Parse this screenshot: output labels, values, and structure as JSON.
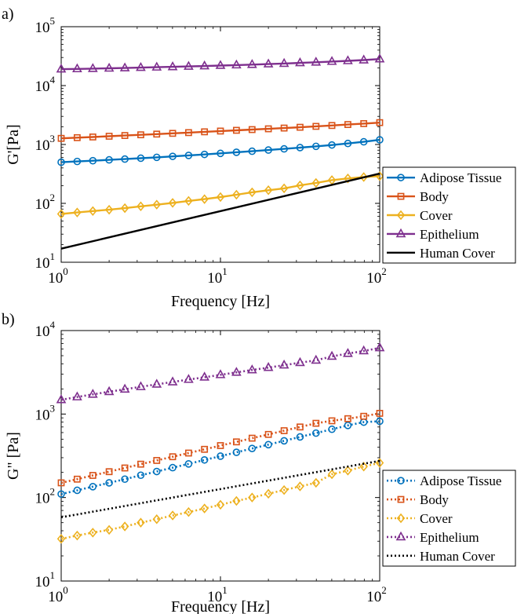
{
  "chart_data": [
    {
      "type": "line",
      "panel_label": "a)",
      "xlabel": "Frequency [Hz]",
      "ylabel": "G'[Pa]",
      "xscale": "log",
      "yscale": "log",
      "xlim": [
        1,
        100
      ],
      "ylim": [
        10,
        100000
      ],
      "x_ticks": [
        {
          "value": 1,
          "base": "10",
          "exp": "0"
        },
        {
          "value": 10,
          "base": "10",
          "exp": "1"
        },
        {
          "value": 100,
          "base": "10",
          "exp": "2"
        }
      ],
      "y_ticks": [
        {
          "value": 10,
          "base": "10",
          "exp": "1"
        },
        {
          "value": 100,
          "base": "10",
          "exp": "2"
        },
        {
          "value": 1000,
          "base": "10",
          "exp": "3"
        },
        {
          "value": 10000,
          "base": "10",
          "exp": "4"
        },
        {
          "value": 100000,
          "base": "10",
          "exp": "5"
        }
      ],
      "grid": false,
      "legend_position": "lower-right outside",
      "x": [
        1,
        1.26,
        1.58,
        2,
        2.51,
        3.16,
        3.98,
        5.01,
        6.31,
        7.94,
        10,
        12.6,
        15.8,
        20,
        25.1,
        31.6,
        39.8,
        50.1,
        63.1,
        79.4,
        100
      ],
      "series": [
        {
          "name": "Adipose Tissue",
          "color": "#0072BD",
          "marker": "circle",
          "line": "solid",
          "values": [
            500,
            515,
            530,
            548,
            565,
            585,
            605,
            628,
            652,
            678,
            706,
            737,
            768,
            804,
            842,
            885,
            930,
            980,
            1040,
            1110,
            1200
          ]
        },
        {
          "name": "Body",
          "color": "#D95319",
          "marker": "square",
          "line": "solid",
          "values": [
            1270,
            1305,
            1340,
            1380,
            1420,
            1460,
            1500,
            1545,
            1590,
            1640,
            1690,
            1740,
            1790,
            1845,
            1900,
            1960,
            2030,
            2100,
            2180,
            2260,
            2350
          ]
        },
        {
          "name": "Cover",
          "color": "#EDB120",
          "marker": "diamond",
          "line": "solid",
          "values": [
            66,
            70,
            74,
            78,
            83,
            89,
            95,
            102,
            110,
            118,
            128,
            140,
            154,
            167,
            180,
            202,
            222,
            248,
            265,
            280,
            290
          ]
        },
        {
          "name": "Epithelium",
          "color": "#7E2F8E",
          "marker": "triangle",
          "line": "solid",
          "values": [
            19000,
            19200,
            19400,
            19650,
            19900,
            20200,
            20500,
            20800,
            21150,
            21500,
            21900,
            22300,
            22700,
            23200,
            23700,
            24300,
            24900,
            25600,
            26300,
            27100,
            28200
          ]
        },
        {
          "name": "Human Cover",
          "color": "#000000",
          "marker": "none",
          "line": "solid",
          "x": [
            1,
            100
          ],
          "values": [
            17,
            320
          ]
        }
      ]
    },
    {
      "type": "line",
      "panel_label": "b)",
      "xlabel": "Frequency [Hz]",
      "ylabel": "G\" [Pa]",
      "xscale": "log",
      "yscale": "log",
      "xlim": [
        1,
        100
      ],
      "ylim": [
        10,
        10000
      ],
      "x_ticks": [
        {
          "value": 1,
          "base": "10",
          "exp": "0"
        },
        {
          "value": 10,
          "base": "10",
          "exp": "1"
        },
        {
          "value": 100,
          "base": "10",
          "exp": "2"
        }
      ],
      "y_ticks": [
        {
          "value": 10,
          "base": "10",
          "exp": "1"
        },
        {
          "value": 100,
          "base": "10",
          "exp": "2"
        },
        {
          "value": 1000,
          "base": "10",
          "exp": "3"
        },
        {
          "value": 10000,
          "base": "10",
          "exp": "4"
        }
      ],
      "grid": false,
      "legend_position": "lower-right outside",
      "x": [
        1,
        1.26,
        1.58,
        2,
        2.51,
        3.16,
        3.98,
        5.01,
        6.31,
        7.94,
        10,
        12.6,
        15.8,
        20,
        25.1,
        31.6,
        39.8,
        50.1,
        63.1,
        79.4,
        100
      ],
      "series": [
        {
          "name": "Adipose Tissue",
          "color": "#0072BD",
          "marker": "circle",
          "line": "dotted",
          "values": [
            110,
            122,
            135,
            150,
            166,
            185,
            205,
            228,
            253,
            282,
            313,
            348,
            387,
            430,
            478,
            532,
            591,
            657,
            731,
            800,
            820
          ]
        },
        {
          "name": "Body",
          "color": "#D95319",
          "marker": "square",
          "line": "dotted",
          "values": [
            150,
            166,
            184,
            204,
            226,
            251,
            278,
            308,
            341,
            378,
            419,
            464,
            514,
            570,
            632,
            700,
            775,
            830,
            880,
            940,
            1020
          ]
        },
        {
          "name": "Cover",
          "color": "#EDB120",
          "marker": "diamond",
          "line": "dotted",
          "values": [
            32,
            35,
            38,
            41,
            45,
            50,
            55,
            61,
            67,
            74,
            82,
            91,
            100,
            111,
            123,
            136,
            150,
            190,
            210,
            235,
            260
          ]
        },
        {
          "name": "Epithelium",
          "color": "#7E2F8E",
          "marker": "triangle",
          "line": "dotted",
          "values": [
            1480,
            1600,
            1720,
            1850,
            1980,
            2120,
            2270,
            2420,
            2590,
            2760,
            2950,
            3150,
            3370,
            3600,
            3850,
            4120,
            4400,
            4900,
            5300,
            5700,
            6200
          ]
        },
        {
          "name": "Human Cover",
          "color": "#000000",
          "marker": "none",
          "line": "dotted",
          "x": [
            1,
            100
          ],
          "values": [
            58,
            275
          ]
        }
      ]
    }
  ]
}
